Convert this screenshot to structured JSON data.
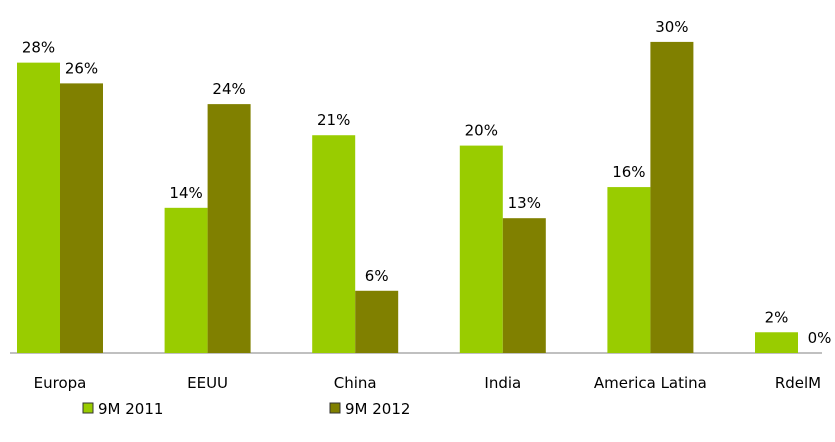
{
  "chart_data": {
    "type": "bar",
    "categories": [
      "Europa",
      "EEUU",
      "China",
      "India",
      "America Latina",
      "RdelM"
    ],
    "series": [
      {
        "name": "9M 2011",
        "color": "#99cc00",
        "values": [
          28,
          14,
          21,
          20,
          16,
          2
        ],
        "value_labels": [
          "28%",
          "14%",
          "21%",
          "20%",
          "16%",
          "2%"
        ]
      },
      {
        "name": "9M 2012",
        "color": "#808000",
        "values": [
          26,
          24,
          6,
          13,
          30,
          0
        ],
        "value_labels": [
          "26%",
          "24%",
          "6%",
          "13%",
          "30%",
          "0%"
        ]
      }
    ]
  }
}
